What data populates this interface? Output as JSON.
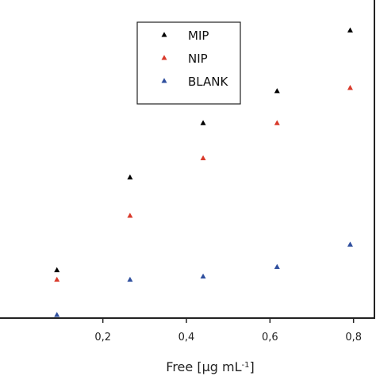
{
  "chart_data": {
    "type": "scatter",
    "title": "",
    "xlabel": "Free [µg mL",
    "xlabel_sup": "-1",
    "xlabel_close": "]",
    "ylabel": "",
    "x_range": [
      -0.05,
      0.85
    ],
    "y_range": [
      0.0,
      1.0
    ],
    "x_ticks": [
      0.2,
      0.4,
      0.6,
      0.8
    ],
    "x_tick_labels": [
      "0,2",
      "0,4",
      "0,6",
      "0,8"
    ],
    "grid": false,
    "legend_position": "top-center",
    "series": [
      {
        "name": "MIP",
        "color": "#000000",
        "x": [
          0.09,
          0.265,
          0.44,
          0.617,
          0.792
        ],
        "y": [
          0.15,
          0.44,
          0.61,
          0.71,
          0.9
        ]
      },
      {
        "name": "NIP",
        "color": "#d93a2b",
        "x": [
          0.09,
          0.265,
          0.44,
          0.617,
          0.792
        ],
        "y": [
          0.12,
          0.32,
          0.5,
          0.61,
          0.72
        ]
      },
      {
        "name": "BLANK",
        "color": "#2f4f9e",
        "x": [
          0.09,
          0.265,
          0.44,
          0.617,
          0.792
        ],
        "y": [
          0.01,
          0.12,
          0.13,
          0.16,
          0.23
        ]
      }
    ]
  }
}
